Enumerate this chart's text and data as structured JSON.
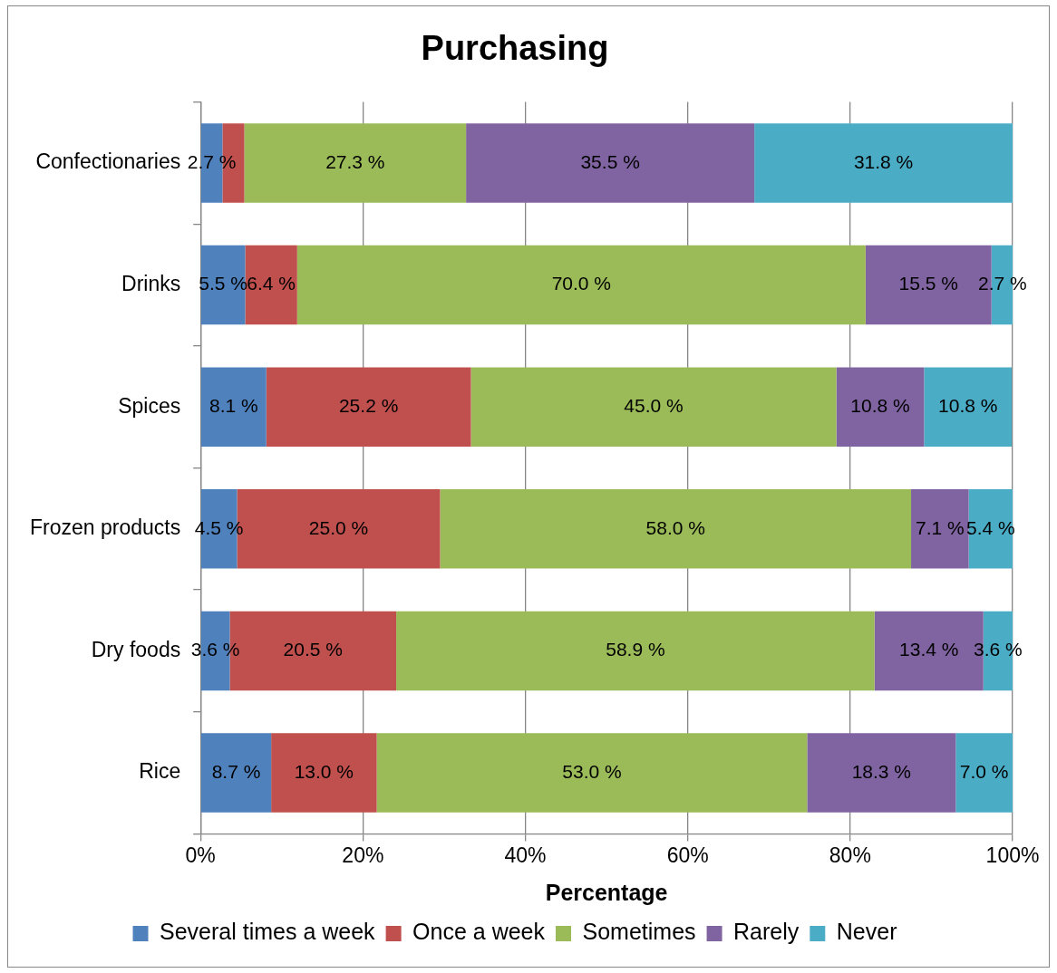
{
  "chart_data": {
    "type": "bar",
    "orientation": "horizontal",
    "stacked": true,
    "title": "Purchasing",
    "xlabel": "Percentage",
    "categories": [
      "Confectionaries",
      "Drinks",
      "Spices",
      "Frozen products",
      "Dry foods",
      "Rice"
    ],
    "series": [
      {
        "name": "Several times a week",
        "color": "#4f81bd",
        "values": [
          2.7,
          5.5,
          8.1,
          4.5,
          3.6,
          8.7
        ],
        "value_labels": [
          "2.7 %",
          "5.5 %",
          "8.1 %",
          "4.5 %",
          "3.6 %",
          "8.7 %"
        ]
      },
      {
        "name": "Once a week",
        "color": "#c0504d",
        "values": [
          2.7,
          6.4,
          25.2,
          25.0,
          20.5,
          13.0
        ],
        "value_labels": [
          null,
          "6.4 %",
          "25.2 %",
          "25.0 %",
          "20.5 %",
          "13.0 %"
        ]
      },
      {
        "name": "Sometimes",
        "color": "#9bbb59",
        "values": [
          27.3,
          70.0,
          45.0,
          58.0,
          58.9,
          53.0
        ],
        "value_labels": [
          "27.3 %",
          "70.0 %",
          "45.0 %",
          "58.0 %",
          "58.9 %",
          "53.0 %"
        ]
      },
      {
        "name": "Rarely",
        "color": "#8064a2",
        "values": [
          35.5,
          15.5,
          10.8,
          7.1,
          13.4,
          18.3
        ],
        "value_labels": [
          "35.5 %",
          "15.5 %",
          "10.8 %",
          "7.1 %",
          "13.4 %",
          "18.3 %"
        ]
      },
      {
        "name": "Never",
        "color": "#4bacc6",
        "values": [
          31.8,
          2.7,
          10.8,
          5.4,
          3.6,
          7.0
        ],
        "value_labels": [
          "31.8 %",
          "2.7 %",
          "10.8 %",
          "5.4 %",
          "3.6 %",
          "7.0 %"
        ]
      }
    ],
    "xlim": [
      0,
      100
    ],
    "xticks": [
      {
        "value": 0,
        "label": "0%"
      },
      {
        "value": 20,
        "label": "20%"
      },
      {
        "value": 40,
        "label": "40%"
      },
      {
        "value": 60,
        "label": "60%"
      },
      {
        "value": 80,
        "label": "80%"
      },
      {
        "value": 100,
        "label": "100%"
      }
    ],
    "grid": "x",
    "legend": "bottom"
  }
}
